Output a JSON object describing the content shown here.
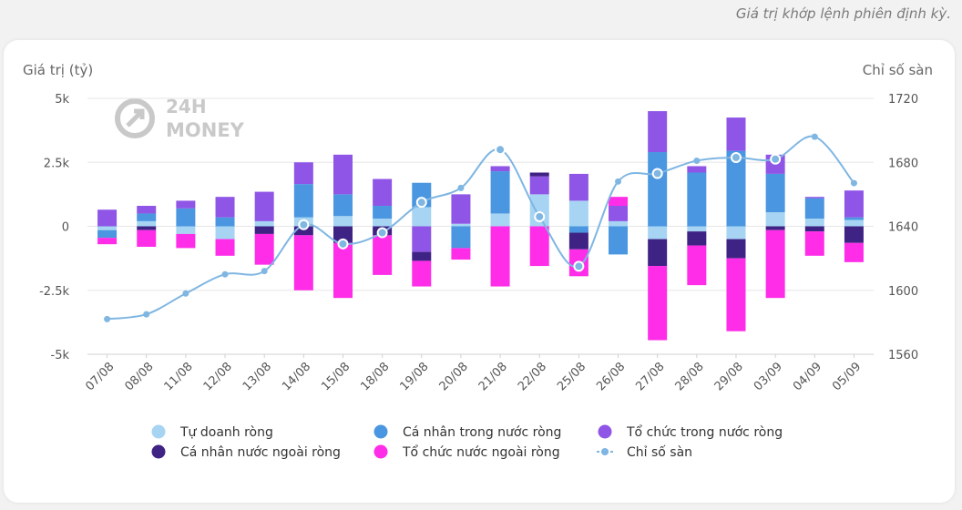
{
  "header_note": "Giá trị khớp lệnh phiên định kỳ.",
  "logo": {
    "line1": "24H",
    "line2": "MONEY"
  },
  "chart_data": {
    "type": "bar",
    "stacked": true,
    "left_axis_title": "Giá trị (tỷ)",
    "right_axis_title": "Chỉ số sàn",
    "left_ticks": [
      "5k",
      "2.5k",
      "0",
      "-2.5k",
      "-5k"
    ],
    "right_ticks": [
      "1720",
      "1680",
      "1640",
      "1600",
      "1560"
    ],
    "ylim": [
      -5000,
      5000
    ],
    "y2lim": [
      1560,
      1720
    ],
    "grid": true,
    "legend_position": "bottom",
    "categories": [
      "07/08",
      "08/08",
      "11/08",
      "12/08",
      "13/08",
      "14/08",
      "15/08",
      "18/08",
      "19/08",
      "20/08",
      "21/08",
      "22/08",
      "25/08",
      "26/08",
      "27/08",
      "28/08",
      "29/08",
      "03/09",
      "04/09",
      "05/09"
    ],
    "series": [
      {
        "name": "Tự doanh ròng",
        "color": "#a6d4f2",
        "values": [
          -150,
          200,
          -300,
          -500,
          200,
          350,
          400,
          300,
          750,
          100,
          500,
          1250,
          1000,
          200,
          -500,
          -200,
          -500,
          550,
          300,
          250
        ]
      },
      {
        "name": "Cá nhân trong nước ròng",
        "color": "#4a96e0",
        "values": [
          -300,
          300,
          700,
          350,
          0,
          1300,
          850,
          500,
          950,
          -850,
          1650,
          0,
          -250,
          -1100,
          2900,
          2100,
          2950,
          1500,
          800,
          100
        ]
      },
      {
        "name": "Tổ chức trong nước ròng",
        "color": "#8f55e6",
        "values": [
          650,
          300,
          300,
          800,
          1150,
          850,
          1550,
          1050,
          -1000,
          1150,
          200,
          700,
          1050,
          600,
          1600,
          250,
          1300,
          750,
          50,
          1050
        ]
      },
      {
        "name": "Cá nhân nước ngoài ròng",
        "color": "#3f2384",
        "values": [
          0,
          -150,
          0,
          0,
          -300,
          -350,
          -650,
          -350,
          -350,
          0,
          0,
          150,
          -650,
          0,
          -1050,
          -550,
          -750,
          -150,
          -200,
          -650
        ]
      },
      {
        "name": "Tổ chức nước ngoài ròng",
        "color": "#ff2ce8",
        "values": [
          -250,
          -650,
          -550,
          -650,
          -1200,
          -2150,
          -2150,
          -1550,
          -1000,
          -450,
          -2350,
          -1550,
          -1050,
          350,
          -2900,
          -1550,
          -2850,
          -2650,
          -950,
          -750
        ]
      }
    ],
    "line_series": {
      "name": "Chỉ số sàn",
      "color": "#7fb6e2",
      "values": [
        1582,
        1585,
        1598,
        1610,
        1612,
        1641,
        1629,
        1636,
        1655,
        1664,
        1688,
        1646,
        1615,
        1668,
        1673,
        1681,
        1683,
        1682,
        1696,
        1667
      ],
      "highlighted": [
        5,
        6,
        7,
        8,
        10,
        11,
        12,
        14,
        16,
        17
      ]
    }
  }
}
